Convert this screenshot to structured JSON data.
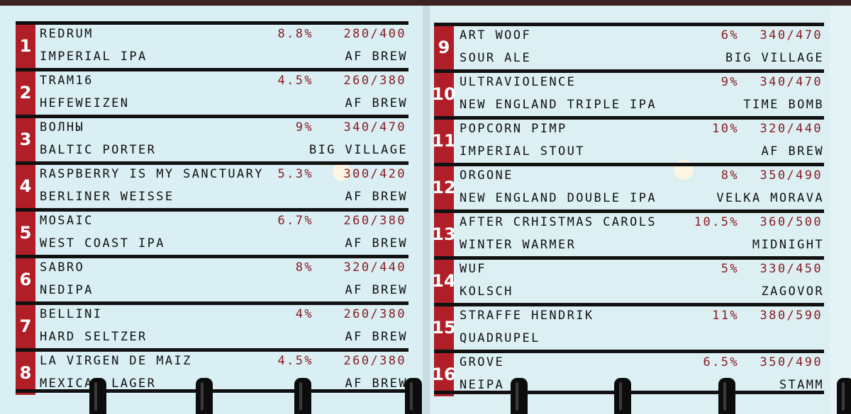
{
  "boards": [
    {
      "taps": [
        {
          "number": 1,
          "name": "REDRUM",
          "abv": "8.8%",
          "price": "280/400",
          "style": "IMPERIAL IPA",
          "brewery": "AF BREW"
        },
        {
          "number": 2,
          "name": "TRAM16",
          "abv": "4.5%",
          "price": "260/380",
          "style": "HEFEWEIZEN",
          "brewery": "AF BREW"
        },
        {
          "number": 3,
          "name": "ВОЛНЫ",
          "abv": "9%",
          "price": "340/470",
          "style": "BALTIC PORTER",
          "brewery": "BIG VILLAGE"
        },
        {
          "number": 4,
          "name": "RASPBERRY IS MY SANCTUARY",
          "abv": "5.3%",
          "price": "300/420",
          "style": "BERLINER WEISSE",
          "brewery": "AF BREW"
        },
        {
          "number": 5,
          "name": "MOSAIC",
          "abv": "6.7%",
          "price": "260/380",
          "style": "WEST COAST IPA",
          "brewery": "AF BREW"
        },
        {
          "number": 6,
          "name": "SABRO",
          "abv": "8%",
          "price": "320/440",
          "style": "NEDIPA",
          "brewery": "AF BREW"
        },
        {
          "number": 7,
          "name": "BELLINI",
          "abv": "4%",
          "price": "260/380",
          "style": "HARD SELTZER",
          "brewery": "AF BREW"
        },
        {
          "number": 8,
          "name": "LA VIRGEN DE MAIZ",
          "abv": "4.5%",
          "price": "260/380",
          "style": "MEXICAN LAGER",
          "brewery": "AF BREW"
        }
      ]
    },
    {
      "taps": [
        {
          "number": 9,
          "name": "ART WOOF",
          "abv": "6%",
          "price": "340/470",
          "style": "SOUR ALE",
          "brewery": "BIG VILLAGE"
        },
        {
          "number": 10,
          "name": "ULTRAVIOLENCE",
          "abv": "9%",
          "price": "340/470",
          "style": "NEW ENGLAND TRIPLE IPA",
          "brewery": "TIME BOMB"
        },
        {
          "number": 11,
          "name": "POPCORN PIMP",
          "abv": "10%",
          "price": "320/440",
          "style": "IMPERIAL STOUT",
          "brewery": "AF BREW"
        },
        {
          "number": 12,
          "name": "ORGONE",
          "abv": "8%",
          "price": "350/490",
          "style": "NEW ENGLAND DOUBLE IPA",
          "brewery": "VELKA MORAVA"
        },
        {
          "number": 13,
          "name": "AFTER CRHISTMAS CAROLS",
          "abv": "10.5%",
          "price": "360/500",
          "style": "WINTER WARMER",
          "brewery": "MIDNIGHT"
        },
        {
          "number": 14,
          "name": "WUF",
          "abv": "5%",
          "price": "330/450",
          "style": "KOLSCH",
          "brewery": "ZAGOVOR"
        },
        {
          "number": 15,
          "name": "STRAFFE HENDRIK",
          "abv": "11%",
          "price": "380/590",
          "style": "QUADRUPEL"
        },
        {
          "number": 16,
          "name": "GROVE",
          "abv": "6.5%",
          "price": "350/490",
          "style": "NEIPA",
          "brewery": "STAMM"
        }
      ]
    }
  ]
}
